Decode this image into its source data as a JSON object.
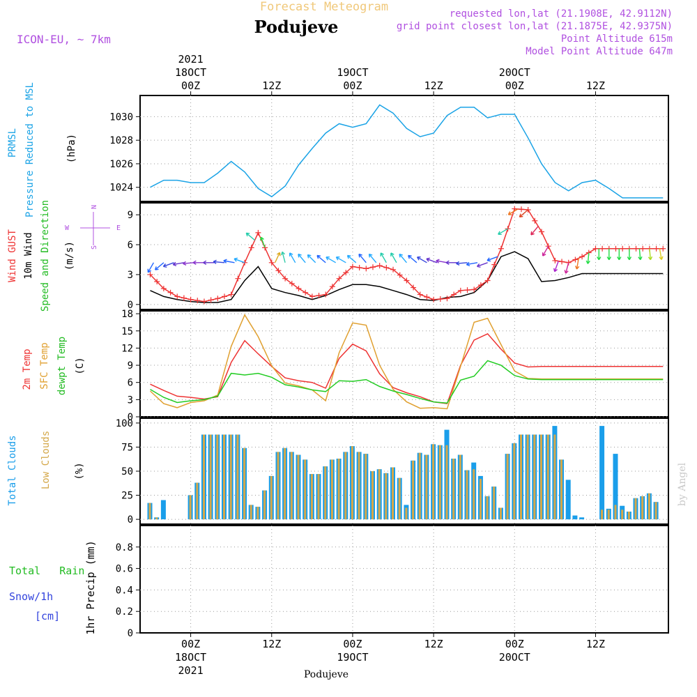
{
  "header": {
    "supertitle": "Forecast Meteogram",
    "location": "Podujeve",
    "model": "ICON-EU, ~ 7km",
    "requested": "requested lon,lat (21.1908E, 42.9112N)",
    "gridpoint": "grid point closest lon,lat (21.1875E, 42.9375N)",
    "point_alt": "Point Altitude 615m",
    "model_alt": "Model Point Altitude 647m",
    "footer": "Podujeve",
    "watermark": "by Angel"
  },
  "colors": {
    "pressure": "#1aa3e6",
    "gust": "#ee3333",
    "wind": "#000000",
    "temp2m": "#ee3333",
    "sfctemp": "#e0a030",
    "dewpt": "#22cc22",
    "totalcloud": "#1a9eea",
    "lowcloud": "#d4a84a",
    "title": "#f0c87a",
    "meta": "#b050e0",
    "rainlabel": "#22bb22",
    "snowlabel": "#3344dd"
  },
  "axis_top": [
    {
      "t": 6,
      "lines": [
        "2021",
        "18OCT",
        "00Z"
      ]
    },
    {
      "t": 18,
      "lines": [
        "12Z"
      ]
    },
    {
      "t": 30,
      "lines": [
        "19OCT",
        "00Z"
      ]
    },
    {
      "t": 42,
      "lines": [
        "12Z"
      ]
    },
    {
      "t": 54,
      "lines": [
        "20OCT",
        "00Z"
      ]
    },
    {
      "t": 66,
      "lines": [
        "12Z"
      ]
    }
  ],
  "axis_bottom": [
    {
      "t": 6,
      "lines": [
        "00Z",
        "18OCT",
        "2021"
      ]
    },
    {
      "t": 18,
      "lines": [
        "12Z"
      ]
    },
    {
      "t": 30,
      "lines": [
        "00Z",
        "19OCT"
      ]
    },
    {
      "t": 42,
      "lines": [
        "12Z"
      ]
    },
    {
      "t": 54,
      "lines": [
        "00Z",
        "20OCT"
      ]
    },
    {
      "t": 66,
      "lines": [
        "12Z"
      ]
    }
  ],
  "panel_labels": {
    "pressure": [
      "PRMSL",
      "Pressure Reduced to MSL"
    ],
    "pressure_unit": "(hPa)",
    "wind_gust": "Wind GUST",
    "wind_10m": "10m Wind",
    "wind_dir": "Speed and Direction",
    "wind_unit": "(m/s)",
    "compass_n": "N",
    "compass_s": "S",
    "compass_w": "W",
    "compass_e": "E",
    "temp_2m": "2m Temp",
    "temp_sfc": "SFC Temp",
    "temp_dew": "dewpt Temp",
    "temp_unit": "(C)",
    "cloud_total": "Total Clouds",
    "cloud_low": "Low Clouds",
    "cloud_unit": "(%)",
    "rain_total": "Total   Rain",
    "rain_snow": "Snow/1h",
    "rain_cm": "[cm]",
    "rain_axis": "1hr Precip (mm)"
  },
  "chart_data": [
    {
      "type": "line",
      "name": "Pressure Reduced to MSL",
      "unit": "hPa",
      "ylim": [
        1022.8,
        1031.8
      ],
      "yticks": [
        1024,
        1026,
        1028,
        1030
      ],
      "x": [
        0,
        2,
        4,
        6,
        8,
        10,
        12,
        14,
        16,
        18,
        20,
        22,
        24,
        26,
        28,
        30,
        32,
        34,
        36,
        38,
        40,
        42,
        44,
        46,
        48,
        50,
        52,
        54,
        56,
        58,
        60,
        62,
        64,
        66,
        68,
        70,
        72,
        74,
        76
      ],
      "values": [
        1024.0,
        1024.6,
        1024.6,
        1024.4,
        1024.4,
        1025.2,
        1026.2,
        1025.3,
        1023.9,
        1023.2,
        1024.1,
        1025.9,
        1027.3,
        1028.6,
        1029.4,
        1029.1,
        1029.4,
        1031.0,
        1030.3,
        1029.0,
        1028.3,
        1028.6,
        1030.1,
        1030.8,
        1030.8,
        1029.9,
        1030.2,
        1030.2,
        1028.2,
        1026.0,
        1024.4,
        1023.7,
        1024.4,
        1024.6,
        1023.9,
        1023.1,
        1023.1,
        1023.1,
        1023.1
      ],
      "grid": true
    },
    {
      "type": "line",
      "name": "Wind",
      "unit": "m/s",
      "ylim": [
        -0.5,
        10.2
      ],
      "yticks": [
        0,
        3,
        6,
        9
      ],
      "x": [
        0,
        2,
        4,
        6,
        8,
        10,
        12,
        14,
        16,
        18,
        20,
        22,
        24,
        26,
        28,
        30,
        32,
        34,
        36,
        38,
        40,
        42,
        44,
        46,
        48,
        50,
        52,
        54,
        56,
        58,
        60,
        62,
        64,
        66,
        68,
        70,
        72,
        74,
        76
      ],
      "series": [
        {
          "name": "Wind GUST",
          "values": [
            3.0,
            1.6,
            0.8,
            0.5,
            0.3,
            0.6,
            1.0,
            4.2,
            7.2,
            4.2,
            2.6,
            1.6,
            0.8,
            1.0,
            2.6,
            3.8,
            3.6,
            3.9,
            3.5,
            2.4,
            1.0,
            0.5,
            0.6,
            1.4,
            1.5,
            2.4,
            5.6,
            9.6,
            9.5,
            7.3,
            4.4,
            4.2,
            4.8,
            5.6,
            5.6,
            5.6,
            5.6,
            5.6,
            5.6
          ]
        },
        {
          "name": "10m Wind",
          "values": [
            1.4,
            0.8,
            0.5,
            0.3,
            0.2,
            0.2,
            0.5,
            2.4,
            3.8,
            1.6,
            1.2,
            0.9,
            0.5,
            0.9,
            1.5,
            2.0,
            2.0,
            1.8,
            1.4,
            1.0,
            0.5,
            0.4,
            0.7,
            0.8,
            1.2,
            2.4,
            4.8,
            5.3,
            4.6,
            2.3,
            2.4,
            2.7,
            3.1,
            3.1,
            3.1,
            3.1,
            3.1,
            3.1,
            3.1
          ]
        }
      ],
      "arrows": {
        "x": [
          0.5,
          2,
          3.5,
          5,
          6.5,
          8,
          9.5,
          11,
          12.5,
          14,
          15.5,
          17,
          18.5,
          20,
          21.5,
          23,
          24.5,
          26,
          27.5,
          29,
          30.5,
          32,
          33.5,
          35,
          36.5,
          38,
          39.5,
          41,
          42.5,
          44,
          45.5,
          47,
          48.5,
          50,
          51.5,
          53,
          54.5,
          56,
          57.5,
          59,
          60.5,
          62,
          63.5,
          65,
          66.5,
          68,
          69.5,
          71,
          72.5,
          74,
          75.5
        ],
        "dir_deg": [
          210,
          230,
          250,
          260,
          265,
          270,
          270,
          275,
          280,
          290,
          310,
          340,
          25,
          345,
          330,
          320,
          315,
          310,
          300,
          300,
          310,
          320,
          320,
          330,
          330,
          320,
          310,
          300,
          290,
          280,
          270,
          265,
          260,
          250,
          250,
          240,
          240,
          230,
          220,
          210,
          200,
          195,
          190,
          185,
          180,
          180,
          180,
          180,
          175,
          175,
          170
        ],
        "colors": [
          "#2266ff",
          "#2266ff",
          "#3344dd",
          "#6633cc",
          "#8833cc",
          "#8833cc",
          "#6633cc",
          "#3344dd",
          "#2266ff",
          "#22aaff",
          "#22ccaa",
          "#22dd44",
          "#ddaa22",
          "#33ccaa",
          "#22aaff",
          "#22aaff",
          "#22aaff",
          "#2266ff",
          "#22aaff",
          "#22aaff",
          "#22aaff",
          "#2266ff",
          "#22aaff",
          "#22ccaa",
          "#22ccaa",
          "#22aaff",
          "#2266ff",
          "#3344dd",
          "#6633cc",
          "#8833cc",
          "#6633cc",
          "#3344dd",
          "#2266ff",
          "#6633cc",
          "#2266ff",
          "#22ccaa",
          "#ee7722",
          "#dd4422",
          "#dd2255",
          "#cc2299",
          "#aa22cc",
          "#cc2299",
          "#ee7722",
          "#22dd44",
          "#22dd44",
          "#22dd44",
          "#22dd44",
          "#22dd44",
          "#22dd44",
          "#aadd22",
          "#ddcc22"
        ]
      }
    },
    {
      "type": "line",
      "name": "Temperature",
      "unit": "C",
      "ylim": [
        0,
        18.5
      ],
      "yticks": [
        0,
        3,
        6,
        9,
        12,
        15,
        18
      ],
      "x": [
        0,
        2,
        4,
        6,
        8,
        10,
        12,
        14,
        16,
        18,
        20,
        22,
        24,
        26,
        28,
        30,
        32,
        34,
        36,
        38,
        40,
        42,
        44,
        46,
        48,
        50,
        52,
        54,
        56,
        58,
        60,
        62,
        64,
        66,
        68,
        70,
        72,
        74,
        76
      ],
      "series": [
        {
          "name": "2m Temp",
          "values": [
            5.7,
            4.6,
            3.6,
            3.4,
            3.1,
            3.5,
            9.5,
            13.3,
            11.0,
            8.8,
            6.8,
            6.3,
            6.0,
            5.0,
            10.2,
            12.7,
            11.5,
            7.5,
            5.1,
            4.2,
            3.5,
            2.6,
            2.3,
            9.0,
            13.4,
            14.5,
            11.8,
            9.4,
            8.7,
            8.8,
            8.8,
            8.8,
            8.8,
            8.8,
            8.8,
            8.8,
            8.8,
            8.8,
            8.8
          ]
        },
        {
          "name": "SFC Temp",
          "values": [
            4.5,
            2.3,
            1.6,
            2.5,
            2.8,
            3.8,
            12.3,
            17.8,
            14.0,
            8.9,
            5.9,
            5.4,
            4.7,
            2.8,
            11.2,
            16.4,
            16.0,
            9.0,
            4.8,
            2.6,
            1.5,
            1.6,
            1.4,
            8.8,
            16.5,
            17.2,
            12.6,
            8.0,
            6.7,
            6.6,
            6.6,
            6.6,
            6.6,
            6.6,
            6.6,
            6.6,
            6.6,
            6.6,
            6.6
          ]
        },
        {
          "name": "dewpt Temp",
          "values": [
            4.8,
            3.4,
            2.5,
            2.8,
            3.0,
            3.6,
            7.6,
            7.3,
            7.6,
            6.9,
            5.6,
            5.2,
            4.7,
            4.4,
            6.3,
            6.2,
            6.5,
            5.3,
            4.5,
            3.9,
            3.2,
            2.6,
            2.4,
            6.4,
            7.1,
            9.8,
            9.0,
            7.2,
            6.6,
            6.5,
            6.5,
            6.5,
            6.5,
            6.5,
            6.5,
            6.5,
            6.5,
            6.5,
            6.5
          ]
        }
      ]
    },
    {
      "type": "bar",
      "name": "Clouds",
      "unit": "%",
      "ylim": [
        -5,
        105
      ],
      "yticks": [
        0,
        25,
        50,
        75,
        100
      ],
      "x": [
        0,
        1,
        2,
        3,
        4,
        5,
        6,
        7,
        8,
        9,
        10,
        11,
        12,
        13,
        14,
        15,
        16,
        17,
        18,
        19,
        20,
        21,
        22,
        23,
        24,
        25,
        26,
        27,
        28,
        29,
        30,
        31,
        32,
        33,
        34,
        35,
        36,
        37,
        38,
        39,
        40,
        41,
        42,
        43,
        44,
        45,
        46,
        47,
        48,
        49,
        50,
        51,
        52,
        53,
        54,
        55,
        56,
        57,
        58,
        59,
        60,
        61,
        62,
        63,
        64,
        65,
        66,
        67,
        68,
        69,
        70,
        71,
        72,
        73,
        74,
        75,
        76
      ],
      "series": [
        {
          "name": "Total Clouds",
          "values": [
            17,
            2,
            20,
            0,
            0,
            0,
            25,
            38,
            88,
            88,
            88,
            88,
            88,
            88,
            74,
            15,
            13,
            30,
            45,
            70,
            74,
            70,
            67,
            62,
            47,
            47,
            55,
            62,
            63,
            70,
            76,
            70,
            68,
            50,
            52,
            48,
            54,
            43,
            15,
            61,
            69,
            67,
            78,
            77,
            93,
            63,
            67,
            51,
            59,
            45,
            24,
            34,
            12,
            68,
            79,
            88,
            88,
            88,
            88,
            88,
            97,
            62,
            41,
            4,
            2,
            0,
            0,
            97,
            11,
            68,
            14,
            8,
            22,
            24,
            27,
            18,
            0
          ],
          "alt": "same"
        },
        {
          "name": "Low Clouds",
          "values": [
            17,
            2,
            0,
            0,
            0,
            0,
            25,
            38,
            88,
            88,
            88,
            88,
            88,
            88,
            74,
            15,
            13,
            30,
            45,
            70,
            74,
            70,
            67,
            62,
            47,
            47,
            55,
            62,
            63,
            70,
            76,
            70,
            68,
            50,
            52,
            48,
            54,
            43,
            12,
            61,
            69,
            67,
            78,
            77,
            77,
            63,
            67,
            51,
            52,
            42,
            24,
            34,
            12,
            68,
            79,
            88,
            88,
            88,
            88,
            88,
            88,
            62,
            0,
            0,
            0,
            0,
            0,
            10,
            10,
            15,
            10,
            8,
            22,
            24,
            27,
            18,
            0
          ]
        }
      ]
    },
    {
      "type": "bar",
      "name": "1hr Precip",
      "unit": "mm",
      "ylim": [
        0,
        1.0
      ],
      "yticks": [
        0,
        0.2,
        0.4,
        0.6,
        0.8
      ],
      "ytick_labels": [
        "0",
        "0.2",
        "0.4",
        "0.6",
        "0.8"
      ],
      "series": [
        {
          "name": "Total Rain",
          "values": []
        },
        {
          "name": "Snow/1h",
          "values": []
        }
      ]
    }
  ]
}
